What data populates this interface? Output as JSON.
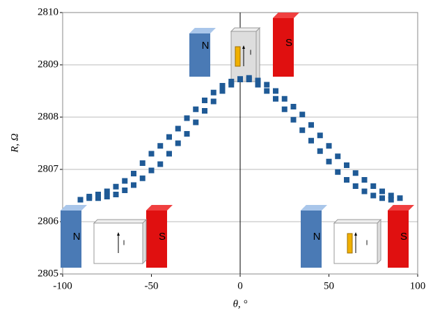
{
  "chart_data": {
    "type": "scatter",
    "x_label": "θ, °",
    "y_label": "R, Ω",
    "xlim": [
      -100,
      100
    ],
    "xticks": [
      -100,
      -50,
      0,
      50,
      100
    ],
    "ylim": [
      2805,
      2810
    ],
    "yticks": [
      2805,
      2806,
      2807,
      2808,
      2809,
      2810
    ],
    "grid": true,
    "color": "#1f5a96",
    "x": [
      -90,
      -85,
      -80,
      -75,
      -70,
      -65,
      -60,
      -55,
      -50,
      -45,
      -40,
      -35,
      -30,
      -25,
      -20,
      -15,
      -10,
      -5,
      0,
      -85,
      -80,
      -75,
      -70,
      -65,
      -60,
      -55,
      -50,
      -45,
      -40,
      -35,
      -30,
      -25,
      -20,
      -15,
      -10,
      -5,
      0,
      5,
      10,
      15,
      20,
      25,
      30,
      35,
      40,
      45,
      50,
      55,
      60,
      65,
      70,
      75,
      80,
      85,
      90,
      5,
      10,
      15,
      20,
      25,
      30,
      35,
      40,
      45,
      50,
      55,
      60,
      65,
      70,
      75,
      80,
      85
    ],
    "values": [
      2806.42,
      2806.48,
      2806.52,
      2806.58,
      2806.67,
      2806.78,
      2806.92,
      2807.12,
      2807.3,
      2807.45,
      2807.62,
      2807.78,
      2807.98,
      2808.15,
      2808.32,
      2808.47,
      2808.6,
      2808.68,
      2808.72,
      2806.45,
      2806.45,
      2806.48,
      2806.52,
      2806.6,
      2806.7,
      2806.83,
      2806.98,
      2807.1,
      2807.3,
      2807.5,
      2807.68,
      2807.9,
      2808.12,
      2808.3,
      2808.5,
      2808.62,
      2808.73,
      2808.75,
      2808.7,
      2808.62,
      2808.5,
      2808.35,
      2808.2,
      2808.05,
      2807.85,
      2807.65,
      2807.45,
      2807.25,
      2807.08,
      2806.93,
      2806.8,
      2806.68,
      2806.58,
      2806.5,
      2806.45,
      2808.72,
      2808.62,
      2808.5,
      2808.35,
      2808.15,
      2807.95,
      2807.75,
      2807.55,
      2807.35,
      2807.15,
      2806.95,
      2806.8,
      2806.68,
      2806.58,
      2806.5,
      2806.45,
      2806.42
    ],
    "annotations": [
      "N",
      "S",
      "N",
      "S",
      "N",
      "S",
      "I",
      "I",
      "I"
    ]
  }
}
